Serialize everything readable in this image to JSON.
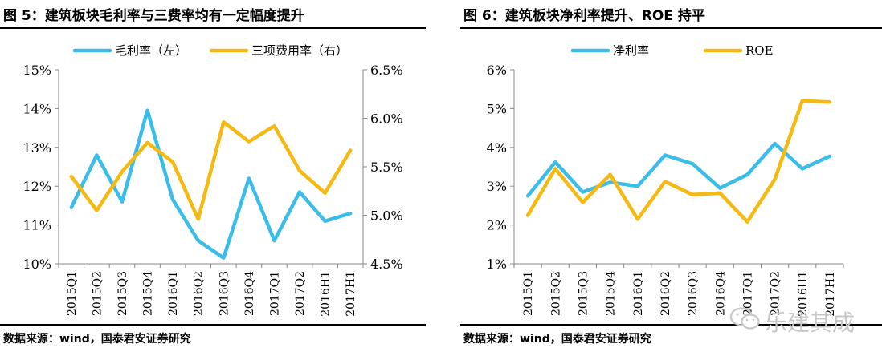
{
  "left_panel": {
    "title": "图 5：建筑板块毛利率与三费率均有一定幅度提升",
    "source": "数据来源：wind，国泰君安证券研究"
  },
  "right_panel": {
    "title": "图 6：建筑板块净利率提升、ROE 持平",
    "source": "数据来源：wind，国泰君安证券研究"
  },
  "watermark": {
    "text": "乐建其成",
    "icon": "wechat-icon"
  },
  "chart_data": [
    {
      "type": "line",
      "categories": [
        "2015Q1",
        "2015Q2",
        "2015Q3",
        "2015Q4",
        "2016Q1",
        "2016Q2",
        "2016Q3",
        "2016Q4",
        "2017Q1",
        "2017Q2",
        "2016H1",
        "2017H1"
      ],
      "series": [
        {
          "name": "毛利率（左）",
          "axis": "left",
          "color": "#3bbde8",
          "values": [
            11.45,
            12.8,
            11.6,
            13.95,
            11.65,
            10.6,
            10.15,
            12.2,
            10.6,
            11.85,
            11.1,
            11.3
          ]
        },
        {
          "name": "三项费用率（右）",
          "axis": "right",
          "color": "#f5b914",
          "values": [
            5.4,
            5.05,
            5.45,
            5.75,
            5.55,
            4.96,
            5.96,
            5.76,
            5.92,
            5.46,
            5.23,
            5.67
          ]
        }
      ],
      "y_left": {
        "min": 10,
        "max": 15,
        "ticks": [
          "10%",
          "11%",
          "12%",
          "13%",
          "14%",
          "15%"
        ]
      },
      "y_right": {
        "min": 4.5,
        "max": 6.5,
        "ticks": [
          "4.5%",
          "5.0%",
          "5.5%",
          "6.0%",
          "6.5%"
        ]
      },
      "grid": false,
      "legend": "top"
    },
    {
      "type": "line",
      "categories": [
        "2015Q1",
        "2015Q2",
        "2015Q3",
        "2015Q4",
        "2016Q1",
        "2016Q2",
        "2016Q3",
        "2016Q4",
        "2017Q1",
        "2017Q2",
        "2016H1",
        "2017H1"
      ],
      "series": [
        {
          "name": "净利率",
          "color": "#3bbde8",
          "values": [
            2.75,
            3.62,
            2.85,
            3.1,
            3.0,
            3.8,
            3.58,
            2.95,
            3.3,
            4.1,
            3.45,
            3.77
          ]
        },
        {
          "name": "ROE",
          "color": "#f5b914",
          "values": [
            2.25,
            3.45,
            2.58,
            3.3,
            2.15,
            3.12,
            2.78,
            2.82,
            2.08,
            3.18,
            5.2,
            5.17
          ]
        }
      ],
      "y_left": {
        "min": 1,
        "max": 6,
        "ticks": [
          "1%",
          "2%",
          "3%",
          "4%",
          "5%",
          "6%"
        ]
      },
      "grid": false,
      "legend": "top"
    }
  ]
}
